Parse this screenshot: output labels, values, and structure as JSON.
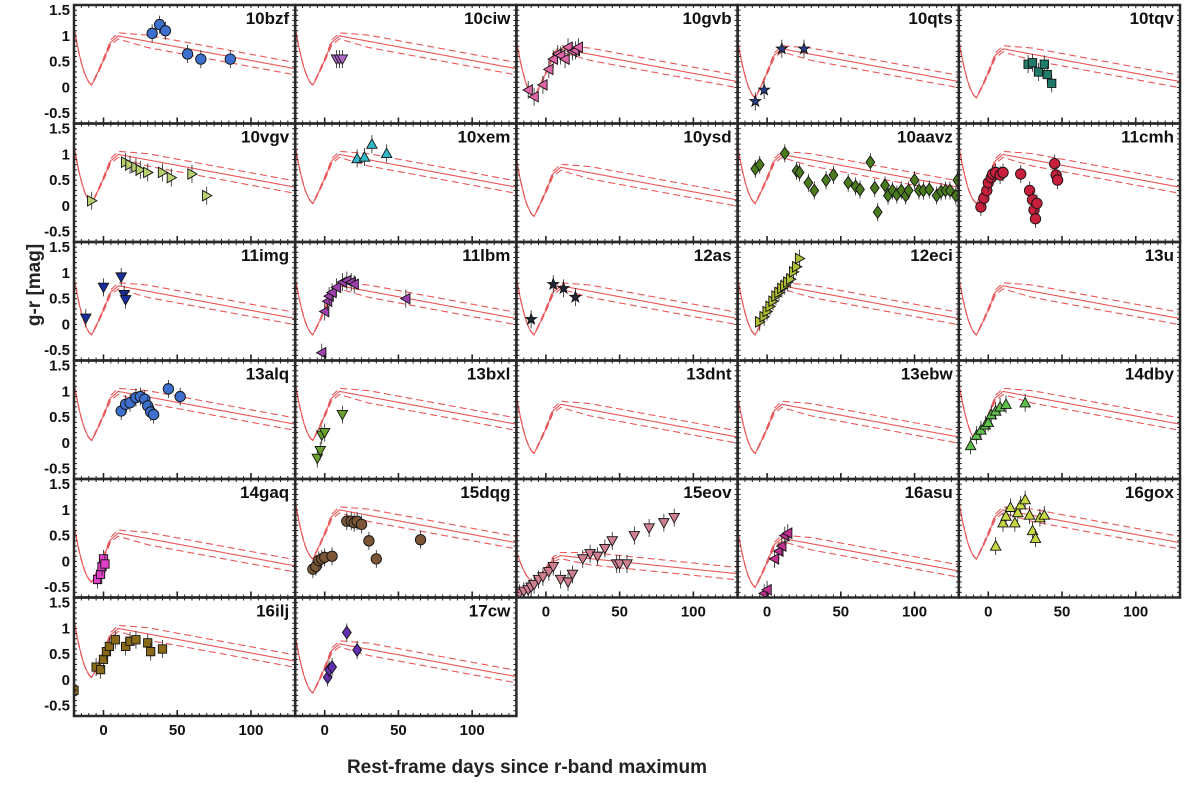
{
  "chart_data": {
    "type": "scatter",
    "title": "",
    "xlabel": "Rest-frame days since r-band maximum",
    "ylabel": "g-r [mag]",
    "xlim": [
      -20,
      130
    ],
    "ylim": [
      -0.7,
      1.6
    ],
    "xticks": [
      0,
      50,
      100
    ],
    "yticks": [
      1.5,
      1,
      0.5,
      0,
      -0.5
    ],
    "ytick_labels": [
      "1.5",
      "1",
      "0.5",
      "0",
      "-0.5"
    ],
    "model_color": "#e8585a",
    "panels": [
      {
        "name": "10bzf",
        "marker": "circle",
        "color": "#3d6fcc",
        "points": [
          [
            33,
            1.05
          ],
          [
            38,
            1.22
          ],
          [
            42,
            1.1
          ],
          [
            57,
            0.65
          ],
          [
            66,
            0.55
          ],
          [
            86,
            0.55
          ]
        ],
        "dy": 0
      },
      {
        "name": "10ciw",
        "marker": "triangle-down",
        "color": "#b266cc",
        "points": [
          [
            8,
            0.55
          ],
          [
            10,
            0.55
          ],
          [
            12,
            0.55
          ]
        ],
        "dy": 0
      },
      {
        "name": "10gvb",
        "marker": "triangle-left",
        "color": "#e066a8",
        "points": [
          [
            -12,
            -0.05
          ],
          [
            -8,
            -0.18
          ],
          [
            -2,
            0.05
          ],
          [
            2,
            0.35
          ],
          [
            5,
            0.55
          ],
          [
            8,
            0.65
          ],
          [
            10,
            0.62
          ],
          [
            13,
            0.55
          ],
          [
            15,
            0.78
          ],
          [
            18,
            0.7
          ],
          [
            20,
            0.72
          ],
          [
            22,
            0.78
          ]
        ],
        "dy": 0
      },
      {
        "name": "10qts",
        "marker": "star",
        "color": "#2a3e8a",
        "points": [
          [
            -8,
            -0.27
          ],
          [
            -2,
            -0.05
          ],
          [
            10,
            0.75
          ],
          [
            25,
            0.75
          ]
        ],
        "dy": 0
      },
      {
        "name": "10tqv",
        "marker": "square",
        "color": "#1f7a6a",
        "points": [
          [
            27,
            0.45
          ],
          [
            30,
            0.48
          ],
          [
            34,
            0.3
          ],
          [
            38,
            0.45
          ],
          [
            40,
            0.25
          ],
          [
            43,
            0.08
          ]
        ],
        "dy": 0
      },
      {
        "name": "10vgv",
        "marker": "triangle-right",
        "color": "#b8d070",
        "points": [
          [
            -8,
            0.1
          ],
          [
            15,
            0.85
          ],
          [
            18,
            0.8
          ],
          [
            22,
            0.75
          ],
          [
            25,
            0.7
          ],
          [
            30,
            0.65
          ],
          [
            40,
            0.65
          ],
          [
            46,
            0.55
          ],
          [
            60,
            0.62
          ],
          [
            70,
            0.2
          ]
        ],
        "dy": 0
      },
      {
        "name": "10xem",
        "marker": "triangle-up",
        "color": "#33b8c8",
        "points": [
          [
            22,
            0.92
          ],
          [
            27,
            0.95
          ],
          [
            32,
            1.2
          ],
          [
            42,
            1.02
          ]
        ],
        "dy": 0
      },
      {
        "name": "10ysd",
        "marker": "circle",
        "color": "#888888",
        "points": [],
        "dy": 0
      },
      {
        "name": "10aavz",
        "marker": "diamond",
        "color": "#4a7a1e",
        "points": [
          [
            -8,
            0.72
          ],
          [
            -5,
            0.8
          ],
          [
            12,
            1.02
          ],
          [
            20,
            0.68
          ],
          [
            22,
            0.65
          ],
          [
            28,
            0.45
          ],
          [
            32,
            0.3
          ],
          [
            40,
            0.5
          ],
          [
            45,
            0.6
          ],
          [
            55,
            0.45
          ],
          [
            60,
            0.38
          ],
          [
            63,
            0.32
          ],
          [
            70,
            0.85
          ],
          [
            73,
            0.35
          ],
          [
            75,
            -0.12
          ],
          [
            80,
            0.4
          ],
          [
            82,
            0.2
          ],
          [
            85,
            0.3
          ],
          [
            88,
            0.22
          ],
          [
            91,
            0.3
          ],
          [
            94,
            0.2
          ],
          [
            96,
            0.3
          ],
          [
            100,
            0.5
          ],
          [
            103,
            0.3
          ],
          [
            106,
            0.3
          ],
          [
            110,
            0.32
          ],
          [
            115,
            0.2
          ],
          [
            118,
            0.28
          ],
          [
            121,
            0.3
          ],
          [
            124,
            0.3
          ],
          [
            128,
            0.2
          ],
          [
            129,
            0.5
          ]
        ],
        "dy": 0
      },
      {
        "name": "11cmh",
        "marker": "circle",
        "color": "#c8203c",
        "points": [
          [
            -5,
            -0.02
          ],
          [
            -3,
            0.15
          ],
          [
            -1,
            0.3
          ],
          [
            0,
            0.45
          ],
          [
            2,
            0.55
          ],
          [
            3,
            0.62
          ],
          [
            5,
            0.65
          ],
          [
            8,
            0.6
          ],
          [
            10,
            0.65
          ],
          [
            22,
            0.62
          ],
          [
            28,
            0.3
          ],
          [
            30,
            0.12
          ],
          [
            31,
            -0.08
          ],
          [
            32,
            -0.25
          ],
          [
            33,
            0.05
          ],
          [
            45,
            0.82
          ],
          [
            46,
            0.6
          ],
          [
            47,
            0.5
          ]
        ],
        "dy": 0
      },
      {
        "name": "11img",
        "marker": "triangle-down",
        "color": "#1a2e9e",
        "points": [
          [
            -12,
            0.12
          ],
          [
            0,
            0.72
          ],
          [
            12,
            0.92
          ],
          [
            14,
            0.58
          ],
          [
            15,
            0.48
          ]
        ],
        "dy": 0
      },
      {
        "name": "11lbm",
        "marker": "triangle-left",
        "color": "#a040b0",
        "points": [
          [
            -2,
            -0.55
          ],
          [
            0,
            0.25
          ],
          [
            2,
            0.45
          ],
          [
            3,
            0.55
          ],
          [
            5,
            0.62
          ],
          [
            8,
            0.72
          ],
          [
            12,
            0.82
          ],
          [
            15,
            0.85
          ],
          [
            18,
            0.82
          ],
          [
            20,
            0.78
          ],
          [
            55,
            0.5
          ]
        ],
        "dy": 0
      },
      {
        "name": "12as",
        "marker": "star",
        "color": "#202838",
        "points": [
          [
            -10,
            0.1
          ],
          [
            5,
            0.78
          ],
          [
            12,
            0.7
          ],
          [
            20,
            0.53
          ]
        ],
        "dy": 0
      },
      {
        "name": "12eci",
        "marker": "triangle-right",
        "color": "#b0c030",
        "points": [
          [
            -5,
            0.05
          ],
          [
            -2,
            0.15
          ],
          [
            0,
            0.25
          ],
          [
            2,
            0.35
          ],
          [
            4,
            0.45
          ],
          [
            6,
            0.55
          ],
          [
            8,
            0.62
          ],
          [
            10,
            0.7
          ],
          [
            12,
            0.75
          ],
          [
            14,
            0.82
          ],
          [
            16,
            0.88
          ],
          [
            18,
            1.02
          ],
          [
            20,
            1.12
          ],
          [
            22,
            1.28
          ]
        ],
        "dy": 0
      },
      {
        "name": "13u",
        "marker": "circle",
        "color": "#888888",
        "points": [],
        "dy": 0
      },
      {
        "name": "13alq",
        "marker": "circle",
        "color": "#3d6fcc",
        "points": [
          [
            12,
            0.62
          ],
          [
            15,
            0.75
          ],
          [
            18,
            0.78
          ],
          [
            22,
            0.88
          ],
          [
            25,
            0.9
          ],
          [
            28,
            0.85
          ],
          [
            30,
            0.72
          ],
          [
            32,
            0.6
          ],
          [
            34,
            0.55
          ],
          [
            44,
            1.05
          ],
          [
            52,
            0.9
          ]
        ],
        "dy": 0
      },
      {
        "name": "13bxl",
        "marker": "triangle-down",
        "color": "#6aa02e",
        "points": [
          [
            -5,
            -0.3
          ],
          [
            -3,
            -0.15
          ],
          [
            -2,
            0.15
          ],
          [
            0,
            0.2
          ],
          [
            12,
            0.55
          ]
        ],
        "dy": 0
      },
      {
        "name": "13dnt",
        "marker": "circle",
        "color": "#888888",
        "points": [],
        "dy": 0
      },
      {
        "name": "13ebw",
        "marker": "circle",
        "color": "#888888",
        "points": [],
        "dy": 0
      },
      {
        "name": "14dby",
        "marker": "triangle-up",
        "color": "#5ec04a",
        "points": [
          [
            -12,
            -0.05
          ],
          [
            -8,
            0.15
          ],
          [
            -5,
            0.25
          ],
          [
            -2,
            0.35
          ],
          [
            0,
            0.4
          ],
          [
            2,
            0.55
          ],
          [
            5,
            0.62
          ],
          [
            8,
            0.7
          ],
          [
            12,
            0.75
          ],
          [
            25,
            0.78
          ]
        ],
        "dy": 0
      },
      {
        "name": "14gaq",
        "marker": "square",
        "color": "#e040c8",
        "points": [
          [
            -4,
            -0.35
          ],
          [
            -2,
            -0.25
          ],
          [
            -1,
            -0.1
          ],
          [
            0,
            0.05
          ],
          [
            1,
            -0.05
          ]
        ],
        "dy": 0
      },
      {
        "name": "15dqg",
        "marker": "circle",
        "color": "#7a5636",
        "points": [
          [
            -8,
            -0.15
          ],
          [
            -6,
            -0.1
          ],
          [
            -4,
            0.02
          ],
          [
            -2,
            0.05
          ],
          [
            0,
            0.08
          ],
          [
            5,
            0.1
          ],
          [
            15,
            0.78
          ],
          [
            18,
            0.78
          ],
          [
            20,
            0.75
          ],
          [
            22,
            0.78
          ],
          [
            25,
            0.72
          ],
          [
            30,
            0.4
          ],
          [
            35,
            0.05
          ],
          [
            65,
            0.42
          ]
        ],
        "dy": 0
      },
      {
        "name": "15eov",
        "marker": "triangle-down",
        "color": "#d08090",
        "points": [
          [
            -18,
            -0.62
          ],
          [
            -15,
            -0.58
          ],
          [
            -12,
            -0.55
          ],
          [
            -10,
            -0.5
          ],
          [
            -8,
            -0.45
          ],
          [
            -5,
            -0.35
          ],
          [
            -2,
            -0.3
          ],
          [
            2,
            -0.2
          ],
          [
            5,
            -0.1
          ],
          [
            10,
            -0.35
          ],
          [
            15,
            -0.4
          ],
          [
            18,
            -0.25
          ],
          [
            25,
            0.05
          ],
          [
            30,
            0.15
          ],
          [
            35,
            0.1
          ],
          [
            40,
            0.25
          ],
          [
            45,
            0.4
          ],
          [
            48,
            -0.05
          ],
          [
            50,
            -0.05
          ],
          [
            55,
            -0.05
          ],
          [
            60,
            0.5
          ],
          [
            70,
            0.65
          ],
          [
            80,
            0.75
          ],
          [
            87,
            0.85
          ]
        ],
        "dy": 0
      },
      {
        "name": "16asu",
        "marker": "triangle-left",
        "color": "#c03090",
        "points": [
          [
            -2,
            -0.62
          ],
          [
            0,
            -0.55
          ],
          [
            5,
            0.05
          ],
          [
            8,
            0.2
          ],
          [
            10,
            0.3
          ],
          [
            12,
            0.5
          ],
          [
            14,
            0.55
          ]
        ],
        "dy": 0
      },
      {
        "name": "16gox",
        "marker": "triangle-up",
        "color": "#c8d840",
        "points": [
          [
            5,
            0.3
          ],
          [
            10,
            0.75
          ],
          [
            12,
            0.88
          ],
          [
            15,
            1.05
          ],
          [
            18,
            0.75
          ],
          [
            20,
            0.95
          ],
          [
            22,
            1.1
          ],
          [
            25,
            1.2
          ],
          [
            28,
            0.9
          ],
          [
            30,
            0.6
          ],
          [
            32,
            0.45
          ],
          [
            35,
            0.85
          ],
          [
            38,
            0.9
          ]
        ],
        "dy": 0
      },
      {
        "name": "16ilj",
        "marker": "square",
        "color": "#8a6a18",
        "points": [
          [
            -20,
            -0.2
          ],
          [
            -5,
            0.25
          ],
          [
            -2,
            0.2
          ],
          [
            0,
            0.4
          ],
          [
            2,
            0.55
          ],
          [
            4,
            0.65
          ],
          [
            8,
            0.78
          ],
          [
            15,
            0.65
          ],
          [
            18,
            0.75
          ],
          [
            22,
            0.78
          ],
          [
            30,
            0.72
          ],
          [
            32,
            0.55
          ],
          [
            40,
            0.6
          ]
        ],
        "dy": 0
      },
      {
        "name": "17cw",
        "marker": "diamond",
        "color": "#6030b0",
        "points": [
          [
            2,
            0.05
          ],
          [
            3,
            0.2
          ],
          [
            5,
            0.25
          ],
          [
            15,
            0.92
          ],
          [
            22,
            0.58
          ]
        ],
        "dy": 0
      }
    ]
  }
}
